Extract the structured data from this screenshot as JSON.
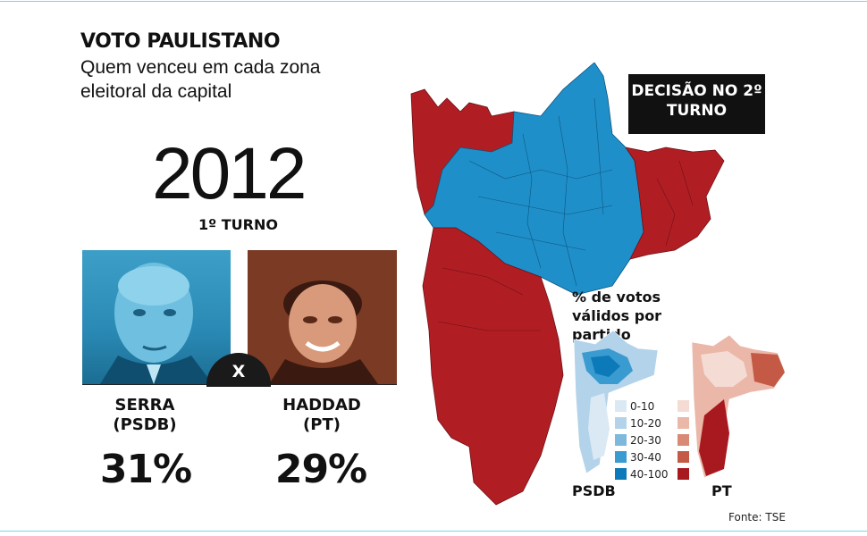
{
  "header": {
    "title": "VOTO PAULISTANO",
    "subtitle": "Quem venceu em cada zona eleitoral da capital"
  },
  "election": {
    "year": "2012",
    "round": "1º TURNO"
  },
  "candidates": [
    {
      "name": "SERRA",
      "party": "(PSDB)",
      "percent": "31%",
      "color": "#1f8fc9"
    },
    {
      "name": "HADDAD",
      "party": "(PT)",
      "percent": "29%",
      "color": "#b01e24"
    }
  ],
  "versus": "X",
  "decision_box": "DECISÃO NO 2º TURNO",
  "legend": {
    "title": "% de votos válidos por partido",
    "ranges": [
      "0-10",
      "10-20",
      "20-30",
      "30-40",
      "40-100"
    ],
    "psdb_colors": [
      "#dbe9f4",
      "#b3d3ea",
      "#7eb8dd",
      "#3a9bd0",
      "#0c79b9"
    ],
    "pt_colors": [
      "#f4dcd5",
      "#eab7a8",
      "#d98a75",
      "#c45a45",
      "#a8191f"
    ],
    "psdb_label": "PSDB",
    "pt_label": "PT"
  },
  "source": "Fonte: TSE"
}
